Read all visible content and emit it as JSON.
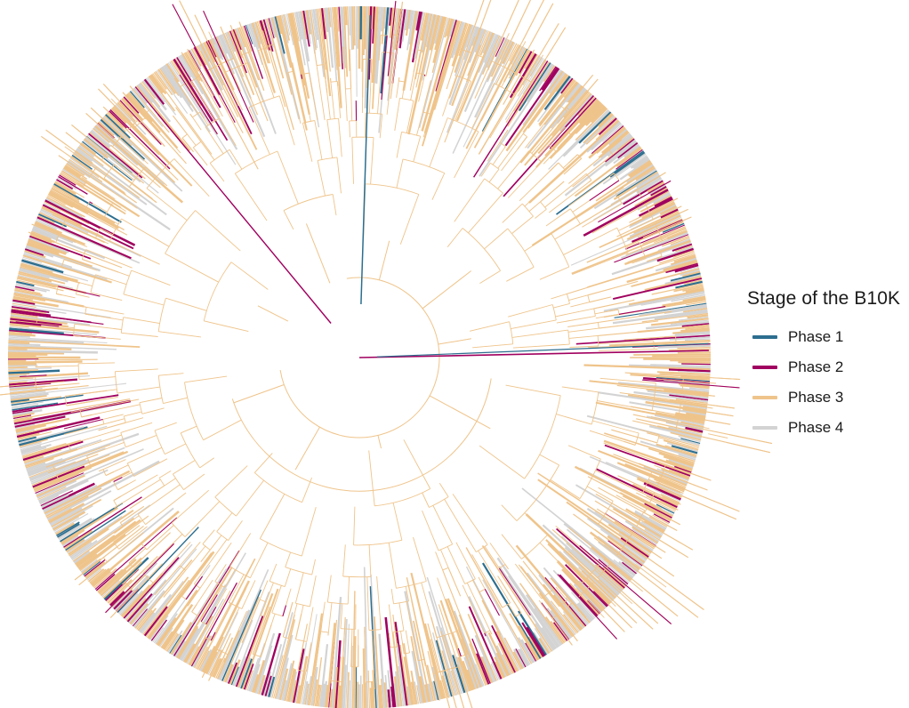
{
  "legend": {
    "title": "Stage of the B10K",
    "items": [
      {
        "label": "Phase 1",
        "color": "#2c6e8f"
      },
      {
        "label": "Phase 2",
        "color": "#a0005f"
      },
      {
        "label": "Phase 3",
        "color": "#efc48b"
      },
      {
        "label": "Phase 4",
        "color": "#d3d3d3"
      }
    ]
  }
}
